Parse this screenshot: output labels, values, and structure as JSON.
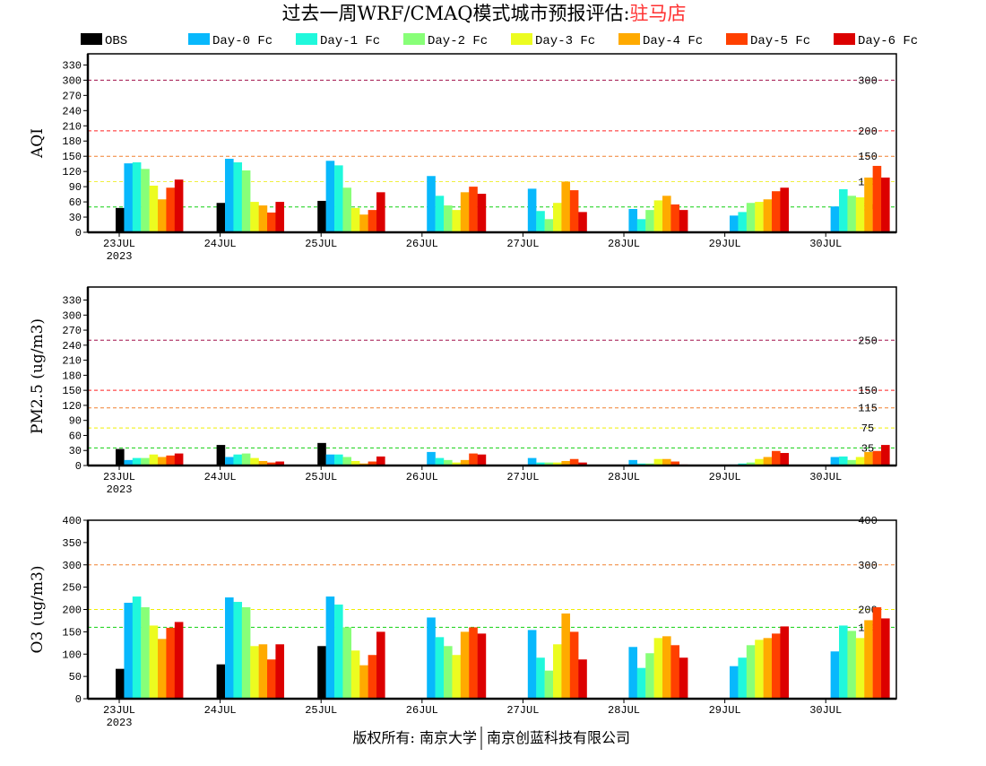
{
  "title": {
    "prefix": "过去一周WRF/CMAQ模式城市预报评估:",
    "city": "驻马店",
    "city_color": "#ff3030"
  },
  "footer": {
    "left": "版权所有: 南京大学",
    "right": "南京创蓝科技有限公司"
  },
  "chart_data": {
    "type": "bar",
    "categories": [
      "23JUL",
      "24JUL",
      "25JUL",
      "26JUL",
      "27JUL",
      "28JUL",
      "29JUL",
      "30JUL"
    ],
    "year_label": "2023",
    "legend": [
      {
        "name": "OBS",
        "color": "#000000"
      },
      {
        "name": "Day-0 Fc",
        "color": "#08b8fc"
      },
      {
        "name": "Day-1 Fc",
        "color": "#20f8dc"
      },
      {
        "name": "Day-2 Fc",
        "color": "#88ff78"
      },
      {
        "name": "Day-3 Fc",
        "color": "#ecfc20"
      },
      {
        "name": "Day-4 Fc",
        "color": "#ffaa00"
      },
      {
        "name": "Day-5 Fc",
        "color": "#ff4000"
      },
      {
        "name": "Day-6 Fc",
        "color": "#dc0000"
      }
    ],
    "panels": [
      {
        "ylabel": "AQI",
        "ylim": [
          0,
          352
        ],
        "yticks": [
          0,
          30,
          60,
          90,
          120,
          150,
          180,
          210,
          240,
          270,
          300,
          330
        ],
        "thresholds": [
          {
            "value": 300,
            "label": "300",
            "color": "#a0104a"
          },
          {
            "value": 200,
            "label": "200",
            "color": "#ff2020"
          },
          {
            "value": 150,
            "label": "150",
            "color": "#f08030"
          },
          {
            "value": 100,
            "label": "100",
            "color": "#f0f040"
          },
          {
            "value": 50,
            "label": "50",
            "color": "#10d010"
          }
        ],
        "series": [
          {
            "name": "OBS",
            "values": [
              48,
              58,
              62,
              null,
              null,
              null,
              null,
              null
            ]
          },
          {
            "name": "Day-0 Fc",
            "values": [
              136,
              145,
              141,
              111,
              86,
              46,
              33,
              51
            ]
          },
          {
            "name": "Day-1 Fc",
            "values": [
              138,
              138,
              132,
              72,
              42,
              26,
              40,
              85
            ]
          },
          {
            "name": "Day-2 Fc",
            "values": [
              125,
              122,
              88,
              53,
              26,
              44,
              58,
              72
            ]
          },
          {
            "name": "Day-3 Fc",
            "values": [
              92,
              60,
              48,
              44,
              58,
              63,
              60,
              69
            ]
          },
          {
            "name": "Day-4 Fc",
            "values": [
              65,
              53,
              35,
              79,
              100,
              72,
              65,
              108
            ]
          },
          {
            "name": "Day-5 Fc",
            "values": [
              88,
              39,
              44,
              90,
              83,
              55,
              81,
              131
            ]
          },
          {
            "name": "Day-6 Fc",
            "values": [
              104,
              60,
              79,
              76,
              40,
              44,
              88,
              108
            ]
          }
        ]
      },
      {
        "ylabel": "PM2.5 (ug/m3)",
        "ylim": [
          0,
          356
        ],
        "yticks": [
          0,
          30,
          60,
          90,
          120,
          150,
          180,
          210,
          240,
          270,
          300,
          330
        ],
        "thresholds": [
          {
            "value": 250,
            "label": "250",
            "color": "#a0104a"
          },
          {
            "value": 150,
            "label": "150",
            "color": "#ff2020"
          },
          {
            "value": 115,
            "label": "115",
            "color": "#f08030"
          },
          {
            "value": 75,
            "label": "75",
            "color": "#f0f000"
          },
          {
            "value": 35,
            "label": "35",
            "color": "#10d010"
          }
        ],
        "series": [
          {
            "name": "OBS",
            "values": [
              33,
              41,
              45,
              null,
              null,
              null,
              null,
              null
            ]
          },
          {
            "name": "Day-0 Fc",
            "values": [
              11,
              17,
              22,
              27,
              15,
              11,
              2,
              17
            ]
          },
          {
            "name": "Day-1 Fc",
            "values": [
              15,
              22,
              22,
              15,
              6,
              4,
              4,
              18
            ]
          },
          {
            "name": "Day-2 Fc",
            "values": [
              15,
              24,
              17,
              11,
              6,
              4,
              6,
              11
            ]
          },
          {
            "name": "Day-3 Fc",
            "values": [
              22,
              15,
              9,
              6,
              6,
              13,
              13,
              17
            ]
          },
          {
            "name": "Day-4 Fc",
            "values": [
              17,
              9,
              4,
              11,
              9,
              13,
              17,
              27
            ]
          },
          {
            "name": "Day-5 Fc",
            "values": [
              20,
              6,
              8,
              24,
              13,
              8,
              29,
              29
            ]
          },
          {
            "name": "Day-6 Fc",
            "values": [
              24,
              8,
              18,
              22,
              6,
              2,
              25,
              41
            ]
          }
        ]
      },
      {
        "ylabel": "O3 (ug/m3)",
        "ylim": [
          0,
          400
        ],
        "yticks": [
          0,
          50,
          100,
          150,
          200,
          250,
          300,
          350,
          400
        ],
        "thresholds": [
          {
            "value": 400,
            "label": "400",
            "color": "#ff2020"
          },
          {
            "value": 300,
            "label": "300",
            "color": "#f08030"
          },
          {
            "value": 200,
            "label": "200",
            "color": "#f0f000"
          },
          {
            "value": 160,
            "label": "160",
            "color": "#10d010"
          }
        ],
        "series": [
          {
            "name": "OBS",
            "values": [
              67,
              77,
              118,
              null,
              null,
              null,
              null,
              null
            ]
          },
          {
            "name": "Day-0 Fc",
            "values": [
              215,
              227,
              229,
              182,
              154,
              116,
              73,
              106
            ]
          },
          {
            "name": "Day-1 Fc",
            "values": [
              229,
              217,
              211,
              138,
              92,
              69,
              92,
              164
            ]
          },
          {
            "name": "Day-2 Fc",
            "values": [
              205,
              205,
              160,
              118,
              63,
              102,
              120,
              152
            ]
          },
          {
            "name": "Day-3 Fc",
            "values": [
              164,
              118,
              108,
              98,
              122,
              136,
              132,
              136
            ]
          },
          {
            "name": "Day-4 Fc",
            "values": [
              134,
              122,
              75,
              150,
              191,
              140,
              136,
              176
            ]
          },
          {
            "name": "Day-5 Fc",
            "values": [
              159,
              88,
              98,
              160,
              150,
              120,
              146,
              205
            ]
          },
          {
            "name": "Day-6 Fc",
            "values": [
              172,
              122,
              150,
              146,
              88,
              92,
              162,
              180
            ]
          }
        ]
      }
    ]
  }
}
